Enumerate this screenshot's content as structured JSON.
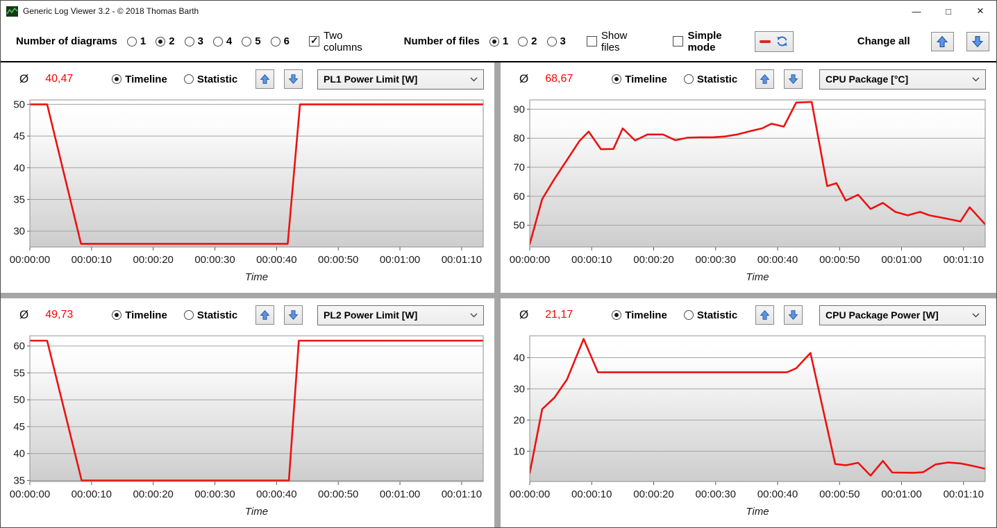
{
  "window": {
    "title": "Generic Log Viewer 3.2 - © 2018 Thomas Barth",
    "controls": {
      "minimize": "—",
      "maximize": "□",
      "close": "×"
    }
  },
  "colors": {
    "line_red": "#ed1111",
    "avg_red": "#ff0000",
    "grid": "#a3a3a3",
    "plot_border": "#8f8f8f",
    "divider_gray": "#a6a6a6",
    "arrow_blue_fill": "#5a96e0",
    "arrow_blue_stroke": "#1f4e9c"
  },
  "toolbar": {
    "diagrams_label": "Number of diagrams",
    "diagram_options": [
      "1",
      "2",
      "3",
      "4",
      "5",
      "6"
    ],
    "diagram_selected": "2",
    "two_columns_label": "Two columns",
    "two_columns_checked": true,
    "files_label": "Number of files",
    "file_options": [
      "1",
      "2",
      "3"
    ],
    "file_selected": "1",
    "show_files_label": "Show files",
    "show_files_checked": false,
    "simple_mode_label": "Simple mode",
    "simple_mode_checked": false,
    "change_all_label": "Change all"
  },
  "panel_common": {
    "avg_symbol": "Ø",
    "timeline_label": "Timeline",
    "statistic_label": "Statistic",
    "timeline_selected": true
  },
  "chart_data": [
    {
      "type": "line",
      "title": "PL1 Power Limit [W]",
      "average_label": "40,47",
      "average": 40.47,
      "xlabel": "Time",
      "ylim": [
        27.5,
        50.7
      ],
      "yticks": [
        30,
        35,
        40,
        45,
        50
      ],
      "xlim": [
        0,
        73.5
      ],
      "xticks": [
        0,
        10,
        20,
        30,
        40,
        50,
        60,
        70
      ],
      "xtick_labels": [
        "00:00:00",
        "00:00:10",
        "00:00:20",
        "00:00:30",
        "00:00:40",
        "00:00:50",
        "00:01:00",
        "00:01:10"
      ],
      "points": [
        [
          0,
          50
        ],
        [
          2.8,
          50
        ],
        [
          8.3,
          28
        ],
        [
          41.8,
          28
        ],
        [
          43.8,
          50
        ],
        [
          73.5,
          50
        ]
      ]
    },
    {
      "type": "line",
      "title": "CPU Package [°C]",
      "average_label": "68,67",
      "average": 68.67,
      "xlabel": "Time",
      "ylim": [
        42.5,
        93.2
      ],
      "yticks": [
        50,
        60,
        70,
        80,
        90
      ],
      "xlim": [
        0,
        73.5
      ],
      "xticks": [
        0,
        10,
        20,
        30,
        40,
        50,
        60,
        70
      ],
      "xtick_labels": [
        "00:00:00",
        "00:00:10",
        "00:00:20",
        "00:00:30",
        "00:00:40",
        "00:00:50",
        "00:01:00",
        "00:01:10"
      ],
      "points": [
        [
          0,
          43.5
        ],
        [
          2,
          59
        ],
        [
          4,
          66
        ],
        [
          6,
          72.5
        ],
        [
          8,
          79
        ],
        [
          9.5,
          82.3
        ],
        [
          11.5,
          76.2
        ],
        [
          13.5,
          76.3
        ],
        [
          15,
          83.4
        ],
        [
          17,
          79.2
        ],
        [
          19,
          81.3
        ],
        [
          21.5,
          81.3
        ],
        [
          23.5,
          79.3
        ],
        [
          25.5,
          80.2
        ],
        [
          27.5,
          80.3
        ],
        [
          29.5,
          80.3
        ],
        [
          31.5,
          80.6
        ],
        [
          33.5,
          81.3
        ],
        [
          35.5,
          82.4
        ],
        [
          37.5,
          83.4
        ],
        [
          39,
          85
        ],
        [
          41,
          84
        ],
        [
          43,
          92.3
        ],
        [
          45.5,
          92.5
        ],
        [
          48,
          63.5
        ],
        [
          49.5,
          64.5
        ],
        [
          51,
          58.5
        ],
        [
          53,
          60.5
        ],
        [
          55,
          55.6
        ],
        [
          57,
          57.7
        ],
        [
          59,
          54.6
        ],
        [
          61,
          53.4
        ],
        [
          63,
          54.6
        ],
        [
          64.5,
          53.4
        ],
        [
          67,
          52.4
        ],
        [
          69.5,
          51.3
        ],
        [
          71,
          56.2
        ],
        [
          73.5,
          50.3
        ]
      ]
    },
    {
      "type": "line",
      "title": "PL2 Power Limit [W]",
      "average_label": "49,73",
      "average": 49.73,
      "xlabel": "Time",
      "ylim": [
        34.8,
        61.9
      ],
      "yticks": [
        35,
        40,
        45,
        50,
        55,
        60
      ],
      "xlim": [
        0,
        73.5
      ],
      "xticks": [
        0,
        10,
        20,
        30,
        40,
        50,
        60,
        70
      ],
      "xtick_labels": [
        "00:00:00",
        "00:00:10",
        "00:00:20",
        "00:00:30",
        "00:00:40",
        "00:00:50",
        "00:01:00",
        "00:01:10"
      ],
      "points": [
        [
          0,
          61
        ],
        [
          2.8,
          61
        ],
        [
          8.4,
          35
        ],
        [
          42,
          35
        ],
        [
          43.6,
          61
        ],
        [
          73.5,
          61
        ]
      ]
    },
    {
      "type": "line",
      "title": "CPU Package Power [W]",
      "average_label": "21,17",
      "average": 21.17,
      "xlabel": "Time",
      "ylim": [
        0.3,
        47
      ],
      "yticks": [
        10,
        20,
        30,
        40
      ],
      "xlim": [
        0,
        73.5
      ],
      "xticks": [
        0,
        10,
        20,
        30,
        40,
        50,
        60,
        70
      ],
      "xtick_labels": [
        "00:00:00",
        "00:00:10",
        "00:00:20",
        "00:00:30",
        "00:00:40",
        "00:00:50",
        "00:01:00",
        "00:01:10"
      ],
      "points": [
        [
          0,
          3
        ],
        [
          2,
          23.5
        ],
        [
          4,
          27.2
        ],
        [
          6,
          33
        ],
        [
          8.7,
          46
        ],
        [
          11,
          35.3
        ],
        [
          41.5,
          35.3
        ],
        [
          43,
          36.6
        ],
        [
          45.3,
          41.5
        ],
        [
          49.3,
          5.9
        ],
        [
          51,
          5.5
        ],
        [
          53,
          6.3
        ],
        [
          55,
          2.2
        ],
        [
          57,
          6.9
        ],
        [
          58.5,
          3.2
        ],
        [
          62,
          3.1
        ],
        [
          63.5,
          3.3
        ],
        [
          65.5,
          5.8
        ],
        [
          67.5,
          6.4
        ],
        [
          69.5,
          6.1
        ],
        [
          71.5,
          5.3
        ],
        [
          73.5,
          4.4
        ]
      ]
    }
  ]
}
